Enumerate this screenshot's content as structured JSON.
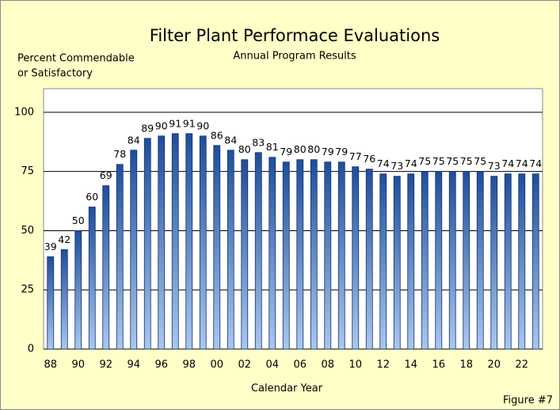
{
  "chart_data": {
    "type": "bar",
    "title": "Filter Plant Performace Evaluations",
    "subtitle": "Annual Program Results",
    "y_label": [
      "Percent Commendable",
      "or Satisfactory"
    ],
    "x_label": "Calendar Year",
    "annotation": "Figure #7",
    "categories": [
      "88",
      null,
      "90",
      null,
      "92",
      null,
      "94",
      null,
      "96",
      null,
      "98",
      null,
      "00",
      null,
      "02",
      null,
      "04",
      null,
      "06",
      null,
      "08",
      null,
      "10",
      null,
      "12",
      null,
      "14",
      null,
      "16",
      null,
      "18",
      null,
      "20",
      null,
      "22",
      null
    ],
    "values": [
      39,
      42,
      50,
      60,
      69,
      78,
      84,
      89,
      90,
      91,
      91,
      90,
      86,
      84,
      80,
      83,
      81,
      79,
      80,
      80,
      79,
      79,
      77,
      76,
      74,
      73,
      74,
      75,
      75,
      75,
      75,
      75,
      73,
      74,
      74,
      74
    ],
    "color": "#1f4e9a",
    "ylim": [
      0,
      110
    ],
    "yticks": [
      0,
      25,
      50,
      75,
      100
    ],
    "grid": true
  }
}
